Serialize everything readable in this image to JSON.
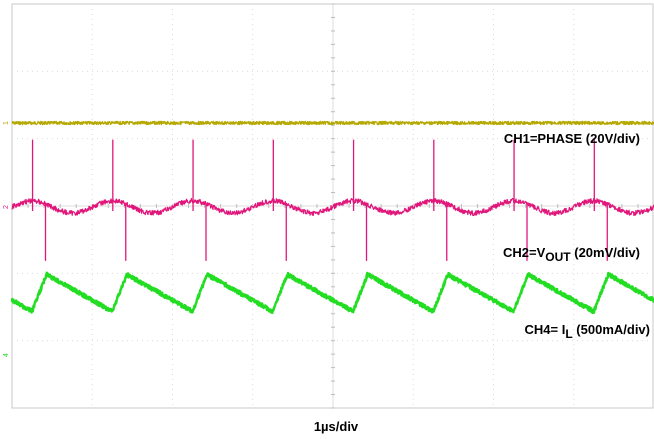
{
  "chart_data": {
    "type": "line",
    "title": "",
    "xlabel": "1µs/div",
    "grid": true,
    "grid_divisions": {
      "x": 8,
      "y": 6
    },
    "x_unit": "µs",
    "x_range": [
      0,
      8
    ],
    "switching_period_us": 1.0,
    "duty_cycle": 0.18,
    "channels": [
      {
        "id": "CH1",
        "label_prefix": "CH1=PHASE (20V/div)",
        "label_sub": "",
        "label_suffix": "",
        "color": "#b5a800",
        "marker": "1",
        "waveform": "square",
        "per_div": "20V/div",
        "low_div": 0.0,
        "high_div": 1.4,
        "edge_times_us": [
          0.25,
          1.25,
          2.25,
          3.25,
          4.25,
          5.25,
          6.25,
          7.25
        ]
      },
      {
        "id": "CH2",
        "label_prefix": "CH2=V",
        "label_sub": "OUT",
        "label_suffix": " (20mV/div)",
        "color": "#e0167a",
        "marker": "2",
        "waveform": "ripple with switching spikes",
        "per_div": "20mV/div",
        "ripple_pp_div": 0.3,
        "spike_up_div": 1.0,
        "spike_down_div": 0.8
      },
      {
        "id": "CH4",
        "label_prefix": "CH4= I",
        "label_sub": "L",
        "label_suffix": " (500mA/div)",
        "color": "#22dd22",
        "marker": "4",
        "waveform": "triangle",
        "per_div": "500mA/div",
        "ripple_pp_div": 0.55,
        "peak_times_us": [
          1.25,
          2.25,
          3.25,
          4.25,
          5.25,
          6.25,
          7.25
        ]
      }
    ]
  }
}
